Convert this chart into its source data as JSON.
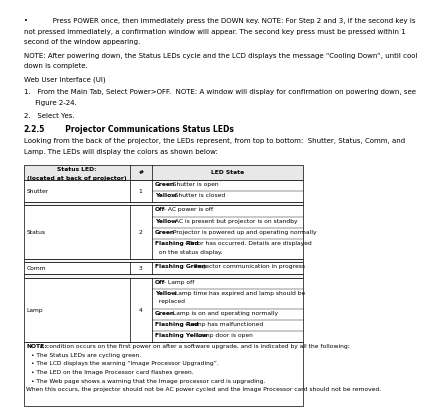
{
  "background_color": "#ffffff",
  "bullet_text_line1": "•           Press POWER once, then immediately press the DOWN key. NOTE: For Step 2 and 3, if the second key is",
  "bullet_text_line2": "not pressed immediately, a confirmation window will appear. The second key press must be pressed within 1",
  "bullet_text_line3": "second of the window appearing.",
  "note_text_line1": "NOTE: After powering down, the Status LEDs cycle and the LCD displays the message “Cooling Down”, until cool",
  "note_text_line2": "down is complete.",
  "web_ui_header": "Web User Interface (UI)",
  "step1_line1": "1.   From the Main Tab, Select Power>OFF.  NOTE: A window will display for confirmation on powering down, see",
  "step1_line2": "     Figure 2-24.",
  "step2_text": "2.   Select Yes.",
  "section_num": "2.2.5",
  "section_title": "     Projector Communications Status LEDs",
  "body_line1": "Looking from the back of the projector, the LEDs represent, from top to bottom:  Shutter, Status, Comm, and",
  "body_line2": "Lamp. The LEDs will display the colors as shown below:",
  "col_header_0": "Status LED:",
  "col_header_0b": "(located at back of projector)",
  "col_header_1": "#",
  "col_header_2": "LED State",
  "rows": [
    {
      "led": "Shutter",
      "num": "1",
      "states": [
        [
          "Green",
          " : Shutter is open"
        ],
        [
          "Yellow",
          " : Shutter is closed"
        ]
      ]
    },
    {
      "led": "Status",
      "num": "2",
      "states": [
        [
          "Off",
          " - AC power is off"
        ],
        [
          "Yellow",
          " - AC is present but projector is on standby"
        ],
        [
          "Green",
          " - Projector is powered up and operating normally"
        ],
        [
          "Flashing Red",
          " - Error has occurred. Details are displayed\n  on the status display."
        ]
      ]
    },
    {
      "led": "Comm",
      "num": "3",
      "states": [
        [
          "Flashing Green",
          " - Projector communication in progress"
        ]
      ]
    },
    {
      "led": "Lamp",
      "num": "4",
      "states": [
        [
          "Off",
          " - Lamp off"
        ],
        [
          "Yellow",
          " - Lamp time has expired and lamp should be\n  replaced"
        ],
        [
          "Green",
          " - Lamp is on and operating normally"
        ],
        [
          "Flashing Red",
          " - Lamp has malfunctioned"
        ],
        [
          "Flashing Yellow",
          " - Lamp door is open"
        ]
      ]
    }
  ],
  "note_row_lines": [
    [
      "NOTE:",
      " A condition occurs on the first power on after a software upgrade, and is indicated by all the following:"
    ],
    [
      "•",
      " The Status LEDs are cycling green."
    ],
    [
      "•",
      " The LCD displays the warning “Image Processor Upgrading”."
    ],
    [
      "•",
      " The LED on the Image Processor card flashes green."
    ],
    [
      "•",
      " The Web page shows a warning that the Image processor card is upgrading."
    ],
    [
      "",
      "When this occurs, the projector should not be AC power cycled and the Image Processor card should not be removed."
    ]
  ],
  "lm": 0.045,
  "rm": 0.975,
  "fs": 5.0,
  "fs_section": 5.5,
  "fs_table": 4.3
}
